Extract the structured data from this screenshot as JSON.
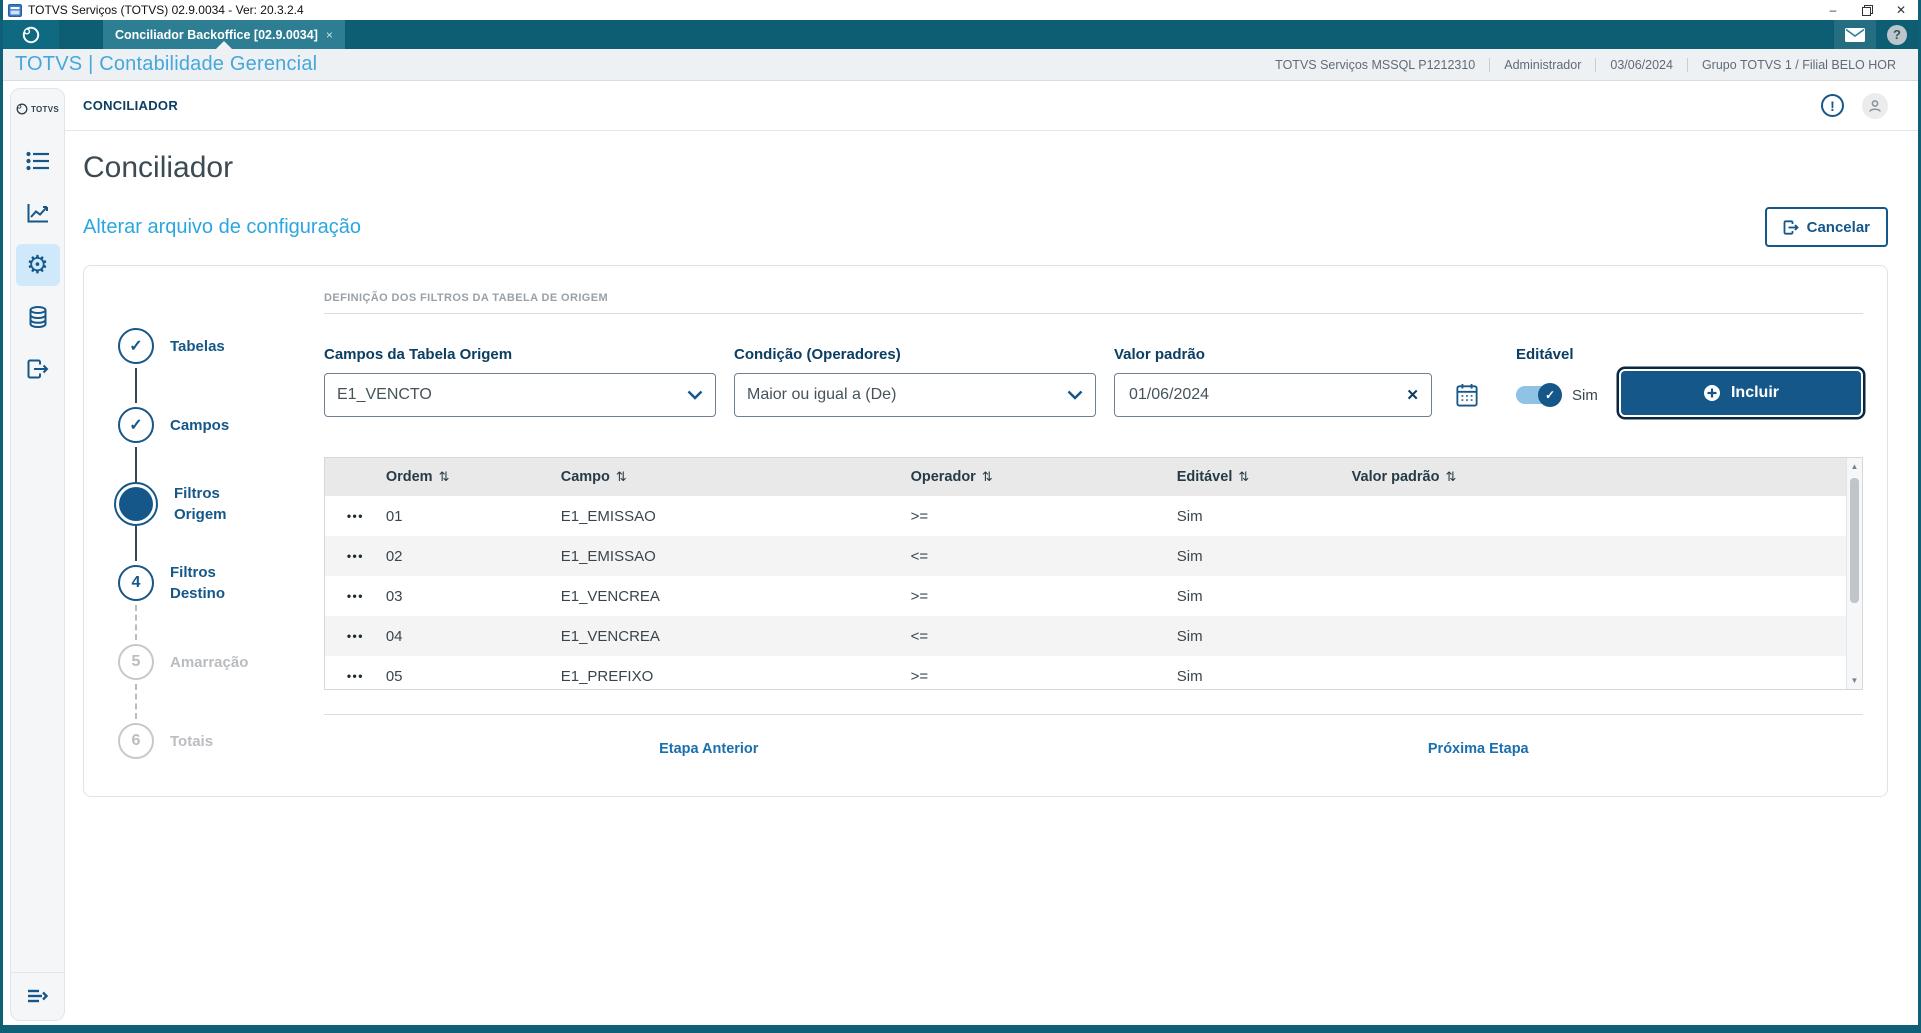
{
  "window": {
    "title": "TOTVS Serviços (TOTVS) 02.9.0034 - Ver: 20.3.2.4"
  },
  "tabbar": {
    "tab_label": "Conciliador Backoffice [02.9.0034]",
    "tab_close": "×"
  },
  "header": {
    "brand": "TOTVS | Contabilidade Gerencial",
    "env": [
      "TOTVS Serviços MSSQL P1212310",
      "Administrador",
      "03/06/2024",
      "Grupo TOTVS 1 / Filial BELO HOR"
    ]
  },
  "sidebar": {
    "logo_text": "TOTVS"
  },
  "breadcrumb": {
    "label": "CONCILIADOR"
  },
  "page": {
    "title": "Conciliador",
    "subtitle": "Alterar arquivo de configuração",
    "cancel_label": "Cancelar"
  },
  "stepper": {
    "steps": [
      {
        "label": "Tabelas",
        "state": "done"
      },
      {
        "label": "Campos",
        "state": "done"
      },
      {
        "label": "Filtros Origem",
        "state": "active"
      },
      {
        "label": "Filtros Destino",
        "state": "todo",
        "number": "4"
      },
      {
        "label": "Amarração",
        "state": "disabled",
        "number": "5"
      },
      {
        "label": "Totais",
        "state": "disabled",
        "number": "6"
      }
    ]
  },
  "form": {
    "section_title": "DEFINIÇÃO DOS FILTROS DA TABELA DE ORIGEM",
    "campo_label": "Campos da Tabela Origem",
    "campo_value": "E1_VENCTO",
    "condicao_label": "Condição (Operadores)",
    "condicao_value": "Maior ou igual a (De)",
    "valor_label": "Valor padrão",
    "valor_value": "01/06/2024",
    "editavel_label": "Editável",
    "editavel_value": "Sim",
    "incluir_label": "Incluir"
  },
  "table": {
    "headers": [
      "Ordem",
      "Campo",
      "Operador",
      "Editável",
      "Valor padrão"
    ],
    "rows": [
      {
        "ordem": "01",
        "campo": "E1_EMISSAO",
        "operador": ">=",
        "editavel": "Sim",
        "valor": ""
      },
      {
        "ordem": "02",
        "campo": "E1_EMISSAO",
        "operador": "<=",
        "editavel": "Sim",
        "valor": ""
      },
      {
        "ordem": "03",
        "campo": "E1_VENCREA",
        "operador": ">=",
        "editavel": "Sim",
        "valor": ""
      },
      {
        "ordem": "04",
        "campo": "E1_VENCREA",
        "operador": "<=",
        "editavel": "Sim",
        "valor": ""
      },
      {
        "ordem": "05",
        "campo": "E1_PREFIXO",
        "operador": ">=",
        "editavel": "Sim",
        "valor": ""
      }
    ]
  },
  "footer_nav": {
    "prev": "Etapa Anterior",
    "next": "Próxima Etapa"
  },
  "icons": {
    "minimize": "–",
    "close": "✕",
    "sort": "⇅",
    "ellipsis": "•••",
    "check": "✓",
    "exclamation": "!",
    "question": "?",
    "gear": "⚙",
    "clear": "✕",
    "scroll_up": "▲",
    "scroll_down": "▼"
  },
  "colors": {
    "primary": "#155789",
    "teal_bar": "#0d5d73",
    "accent_subtitle": "#2ba7e0",
    "brand_blue": "#45a7dc",
    "active_step_fill": "#155789",
    "row_alt": "#f4f4f5"
  }
}
